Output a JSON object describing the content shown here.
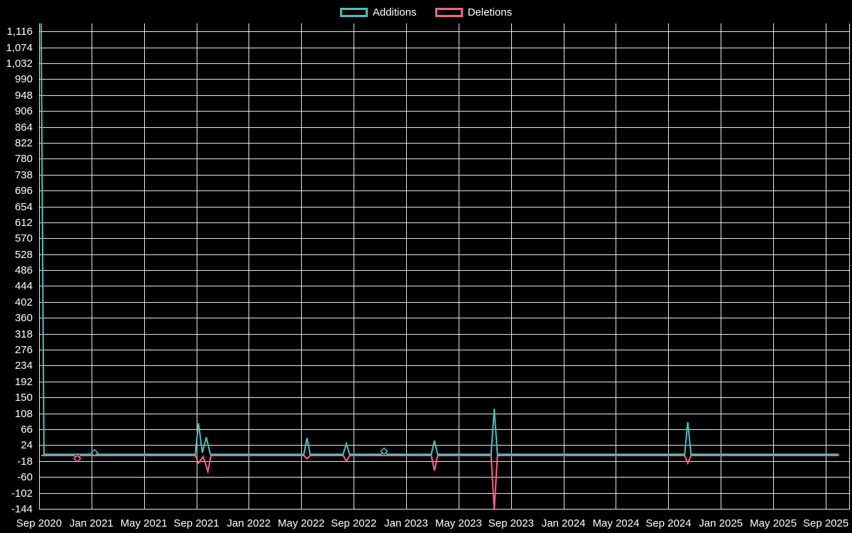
{
  "colors": {
    "background": "#000000",
    "grid": "#ffffff",
    "text": "#ffffff",
    "additions": "#4bc0c0",
    "deletions": "#ff6384"
  },
  "chart_data": {
    "type": "line",
    "title": "",
    "legend_position": "top",
    "grid": true,
    "x_axis": {
      "min": 2020.667,
      "max": 2025.82,
      "tick_values": [
        2020.667,
        2021.0,
        2021.333,
        2021.667,
        2022.0,
        2022.333,
        2022.667,
        2023.0,
        2023.333,
        2023.667,
        2024.0,
        2024.333,
        2024.667,
        2025.0,
        2025.333,
        2025.667
      ],
      "tick_labels": [
        "Sep 2020",
        "Jan 2021",
        "May 2021",
        "Sep 2021",
        "Jan 2022",
        "May 2022",
        "Sep 2022",
        "Jan 2023",
        "May 2023",
        "Sep 2023",
        "Jan 2024",
        "May 2024",
        "Sep 2024",
        "Jan 2025",
        "May 2025",
        "Sep 2025"
      ]
    },
    "y_axis": {
      "min": -144,
      "max": 1137,
      "tick_step": 42,
      "tick_values": [
        1116,
        1074,
        1032,
        990,
        948,
        906,
        864,
        822,
        780,
        738,
        696,
        654,
        612,
        570,
        528,
        486,
        444,
        402,
        360,
        318,
        276,
        234,
        192,
        150,
        108,
        66,
        24,
        -18,
        -60,
        -102,
        -144
      ],
      "tick_labels": [
        "1,116",
        "1,074",
        "1,032",
        "990",
        "948",
        "906",
        "864",
        "822",
        "780",
        "738",
        "696",
        "654",
        "612",
        "570",
        "528",
        "486",
        "444",
        "402",
        "360",
        "318",
        "276",
        "234",
        "192",
        "150",
        "108",
        "66",
        "24",
        "-18",
        "-60",
        "-102",
        "-144"
      ]
    },
    "series": [
      {
        "name": "Additions",
        "color": "#4bc0c0",
        "points": [
          [
            2020.68,
            1137
          ],
          [
            2020.698,
            0
          ],
          [
            2021.0,
            0
          ],
          [
            2021.02,
            4
          ],
          [
            2021.04,
            0
          ],
          [
            2021.66,
            0
          ],
          [
            2021.68,
            82
          ],
          [
            2021.705,
            4
          ],
          [
            2021.73,
            45
          ],
          [
            2021.755,
            0
          ],
          [
            2022.35,
            0
          ],
          [
            2022.37,
            43
          ],
          [
            2022.39,
            0
          ],
          [
            2022.6,
            0
          ],
          [
            2022.62,
            28
          ],
          [
            2022.64,
            0
          ],
          [
            2022.84,
            0
          ],
          [
            2022.86,
            8
          ],
          [
            2022.88,
            0
          ],
          [
            2023.16,
            0
          ],
          [
            2023.18,
            36
          ],
          [
            2023.2,
            0
          ],
          [
            2023.54,
            0
          ],
          [
            2023.56,
            120
          ],
          [
            2023.58,
            0
          ],
          [
            2024.77,
            0
          ],
          [
            2024.79,
            85
          ],
          [
            2024.81,
            0
          ],
          [
            2025.75,
            0
          ]
        ],
        "markers": [
          [
            2021.02,
            4
          ],
          [
            2022.86,
            8
          ]
        ]
      },
      {
        "name": "Deletions",
        "color": "#ff6384",
        "points": [
          [
            2020.68,
            0
          ],
          [
            2020.89,
            0
          ],
          [
            2020.91,
            -8
          ],
          [
            2020.93,
            0
          ],
          [
            2021.66,
            0
          ],
          [
            2021.68,
            -20
          ],
          [
            2021.71,
            -3
          ],
          [
            2021.74,
            -42
          ],
          [
            2021.76,
            0
          ],
          [
            2022.35,
            0
          ],
          [
            2022.37,
            -8
          ],
          [
            2022.39,
            0
          ],
          [
            2022.6,
            0
          ],
          [
            2022.62,
            -15
          ],
          [
            2022.64,
            0
          ],
          [
            2023.16,
            0
          ],
          [
            2023.18,
            -40
          ],
          [
            2023.2,
            0
          ],
          [
            2023.54,
            0
          ],
          [
            2023.56,
            -144
          ],
          [
            2023.58,
            0
          ],
          [
            2024.77,
            0
          ],
          [
            2024.79,
            -20
          ],
          [
            2024.81,
            0
          ],
          [
            2025.75,
            0
          ]
        ],
        "markers": [
          [
            2020.91,
            -8
          ]
        ]
      }
    ]
  }
}
